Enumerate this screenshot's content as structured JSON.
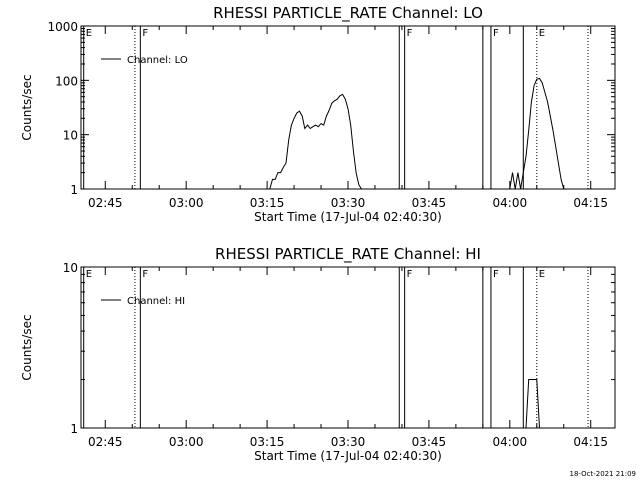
{
  "footer_timestamp": "18-Oct-2021 21:09",
  "chart_data": [
    {
      "type": "line",
      "title": "RHESSI PARTICLE_RATE Channel: LO",
      "xlabel": "Start Time (17-Jul-04 02:40:30)",
      "ylabel": "Counts/sec",
      "yscale": "log",
      "xlim": [
        "02:40:30",
        "04:19:30"
      ],
      "ylim": [
        1,
        1000
      ],
      "x_ticks": [
        "02:45",
        "03:00",
        "03:15",
        "03:30",
        "03:45",
        "04:00",
        "04:15"
      ],
      "y_ticks": [
        1,
        10,
        100,
        1000
      ],
      "y_tick_labels": [
        "1",
        "10",
        "100",
        "1000"
      ],
      "legend": {
        "label": "Channel: LO",
        "position": "top-left"
      },
      "markers": [
        {
          "time": "02:41:00",
          "label": "E",
          "style": "solid"
        },
        {
          "time": "02:50:30",
          "label": "",
          "style": "dotted"
        },
        {
          "time": "02:51:30",
          "label": "F",
          "style": "solid"
        },
        {
          "time": "03:39:30",
          "label": "",
          "style": "solid"
        },
        {
          "time": "03:40:30",
          "label": "F",
          "style": "solid"
        },
        {
          "time": "03:55:00",
          "label": "",
          "style": "solid"
        },
        {
          "time": "03:56:30",
          "label": "F",
          "style": "solid"
        },
        {
          "time": "04:02:30",
          "label": "",
          "style": "solid"
        },
        {
          "time": "04:05:00",
          "label": "E",
          "style": "dotted"
        },
        {
          "time": "04:14:30",
          "label": "",
          "style": "dotted"
        }
      ],
      "series": [
        {
          "name": "Channel: LO",
          "x": [
            "03:15:30",
            "03:16:00",
            "03:16:30",
            "03:17:00",
            "03:17:30",
            "03:18:00",
            "03:18:30",
            "03:19:00",
            "03:19:30",
            "03:20:00",
            "03:20:30",
            "03:21:00",
            "03:21:30",
            "03:22:00",
            "03:22:30",
            "03:23:00",
            "03:23:30",
            "03:24:00",
            "03:24:30",
            "03:25:00",
            "03:25:30",
            "03:26:00",
            "03:26:30",
            "03:27:00",
            "03:27:30",
            "03:28:00",
            "03:28:30",
            "03:29:00",
            "03:29:30",
            "03:30:00",
            "03:30:30",
            "03:31:00",
            "03:31:30",
            "03:32:00",
            "03:32:30",
            "03:33:00",
            "03:33:30",
            "03:34:00",
            "03:34:30",
            "03:35:00"
          ],
          "y": [
            1,
            1.5,
            1.5,
            2,
            2,
            2.5,
            3,
            8,
            15,
            20,
            25,
            27,
            22,
            13,
            15,
            13,
            14,
            15,
            14,
            16,
            15,
            22,
            28,
            38,
            42,
            45,
            52,
            55,
            45,
            30,
            15,
            5,
            2,
            1.2,
            1,
            1,
            1,
            1,
            1,
            1
          ]
        },
        {
          "name": "Channel: LO",
          "x": [
            "04:00:00",
            "04:00:30",
            "04:01:00",
            "04:01:30",
            "04:02:00",
            "04:02:30",
            "04:03:00",
            "04:03:30",
            "04:04:00",
            "04:04:30",
            "04:05:00",
            "04:05:30",
            "04:06:00",
            "04:06:30",
            "04:07:00",
            "04:07:30",
            "04:08:00",
            "04:08:30",
            "04:09:00",
            "04:09:30",
            "04:10:00",
            "04:10:30"
          ],
          "y": [
            1,
            2,
            1,
            2,
            1,
            2,
            4,
            12,
            40,
            80,
            105,
            108,
            90,
            60,
            40,
            22,
            12,
            6,
            3,
            1.5,
            1,
            1
          ]
        }
      ]
    },
    {
      "type": "line",
      "title": "RHESSI PARTICLE_RATE Channel: HI",
      "xlabel": "Start Time (17-Jul-04 02:40:30)",
      "ylabel": "Counts/sec",
      "yscale": "log",
      "xlim": [
        "02:40:30",
        "04:19:30"
      ],
      "ylim": [
        1,
        10
      ],
      "x_ticks": [
        "02:45",
        "03:00",
        "03:15",
        "03:30",
        "03:45",
        "04:00",
        "04:15"
      ],
      "y_ticks": [
        1,
        10
      ],
      "y_tick_labels": [
        "1",
        "10"
      ],
      "legend": {
        "label": "Channel: HI",
        "position": "top-left"
      },
      "markers": [
        {
          "time": "02:41:00",
          "label": "E",
          "style": "solid"
        },
        {
          "time": "02:50:30",
          "label": "",
          "style": "dotted"
        },
        {
          "time": "02:51:30",
          "label": "F",
          "style": "solid"
        },
        {
          "time": "03:39:30",
          "label": "",
          "style": "solid"
        },
        {
          "time": "03:40:30",
          "label": "F",
          "style": "solid"
        },
        {
          "time": "03:55:00",
          "label": "",
          "style": "solid"
        },
        {
          "time": "03:56:30",
          "label": "F",
          "style": "solid"
        },
        {
          "time": "04:02:30",
          "label": "",
          "style": "solid"
        },
        {
          "time": "04:05:00",
          "label": "E",
          "style": "dotted"
        },
        {
          "time": "04:14:30",
          "label": "",
          "style": "dotted"
        }
      ],
      "series": [
        {
          "name": "Channel: HI",
          "x": [
            "04:03:00",
            "04:03:30",
            "04:04:00",
            "04:04:30",
            "04:05:00",
            "04:05:30"
          ],
          "y": [
            1,
            2,
            2,
            2,
            2,
            1
          ]
        }
      ]
    }
  ]
}
